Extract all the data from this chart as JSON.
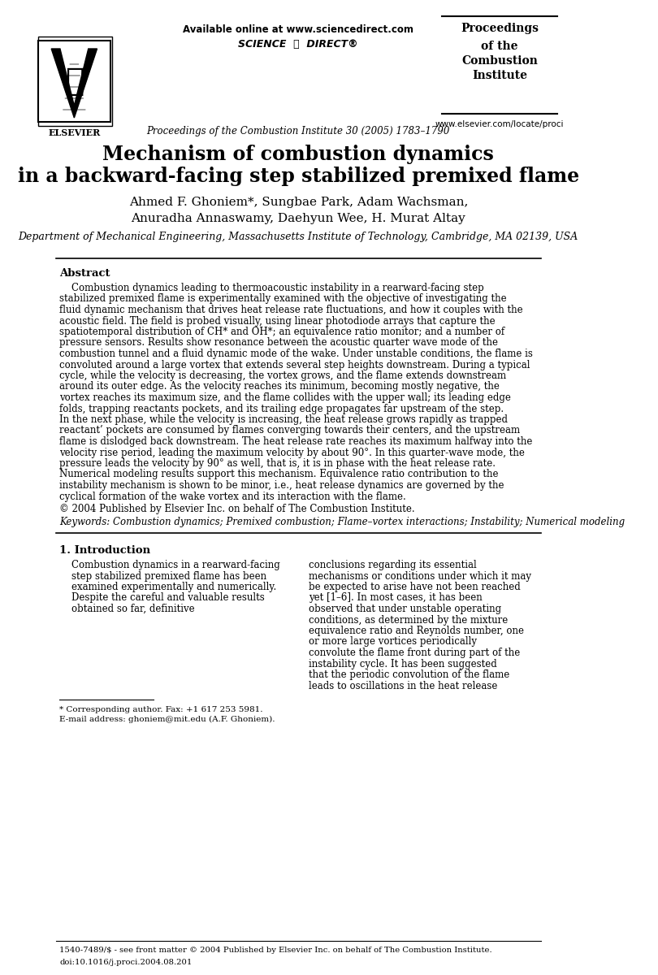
{
  "bg_color": "#ffffff",
  "header_available_online": "Available online at www.sciencedirect.com",
  "header_journal_info": "Proceedings of the Combustion Institute 30 (2005) 1783–1790",
  "header_proceedings_line1": "Proceedings",
  "header_proceedings_line2": "of the",
  "header_proceedings_line3": "Combustion",
  "header_proceedings_line4": "Institute",
  "header_website": "www.elsevier.com/locate/proci",
  "paper_title_line1": "Mechanism of combustion dynamics",
  "paper_title_line2": "in a backward-facing step stabilized premixed flame",
  "authors_line1": "Ahmed F. Ghoniem*, Sungbae Park, Adam Wachsman,",
  "authors_line2": "Anuradha Annaswamy, Daehyun Wee, H. Murat Altay",
  "affiliation": "Department of Mechanical Engineering, Massachusetts Institute of Technology, Cambridge, MA 02139, USA",
  "abstract_title": "Abstract",
  "abstract_text": "Combustion dynamics leading to thermoacoustic instability in a rearward-facing step stabilized premixed flame is experimentally examined with the objective of investigating the fluid dynamic mechanism that drives heat release rate fluctuations, and how it couples with the acoustic field. The field is probed visually, using linear photodiode arrays that capture the spatiotemporal distribution of CH* and OH*; an equivalence ratio monitor; and a number of pressure sensors. Results show resonance between the acoustic quarter wave mode of the combustion tunnel and a fluid dynamic mode of the wake. Under unstable conditions, the flame is convoluted around a large vortex that extends several step heights downstream. During a typical cycle, while the velocity is decreasing, the vortex grows, and the flame extends downstream around its outer edge. As the velocity reaches its minimum, becoming mostly negative, the vortex reaches its maximum size, and the flame collides with the upper wall; its leading edge folds, trapping reactants pockets, and its trailing edge propagates far upstream of the step. In the next phase, while the velocity is increasing, the heat release grows rapidly as trapped reactant’ pockets are consumed by flames converging towards their centers, and the upstream flame is dislodged back downstream. The heat release rate reaches its maximum halfway into the velocity rise period, leading the maximum velocity by about 90°. In this quarter-wave mode, the pressure leads the velocity by 90° as well, that is, it is in phase with the heat release rate. Numerical modeling results support this mechanism. Equivalence ratio contribution to the instability mechanism is shown to be minor, i.e., heat release dynamics are governed by the cyclical formation of the wake vortex and its interaction with the flame.",
  "copyright_text": "© 2004 Published by Elsevier Inc. on behalf of The Combustion Institute.",
  "keywords_label": "Keywords:",
  "keywords_text": "Combustion dynamics; Premixed combustion; Flame–vortex interactions; Instability; Numerical modeling",
  "section1_title": "1. Introduction",
  "intro_col1_text": "Combustion dynamics in a rearward-facing step stabilized premixed flame has been examined experimentally and numerically. Despite the careful and valuable results obtained so far, definitive",
  "intro_col2_text": "conclusions regarding its essential mechanisms or conditions under which it may be expected to arise have not been reached yet [1–6]. In most cases, it has been observed that under unstable operating conditions, as determined by the mixture equivalence ratio and Reynolds number, one or more large vortices periodically convolute the flame front during part of the instability cycle. It has been suggested that the periodic convolution of the flame leads to oscillations in the heat release",
  "footnote_corresponding": "* Corresponding author. Fax: +1 617 253 5981.",
  "footnote_email": "E-mail address: ghoniem@mit.edu (A.F. Ghoniem).",
  "footer_issn": "1540-7489/$ - see front matter © 2004 Published by Elsevier Inc. on behalf of The Combustion Institute.",
  "footer_doi": "doi:10.1016/j.proci.2004.08.201"
}
